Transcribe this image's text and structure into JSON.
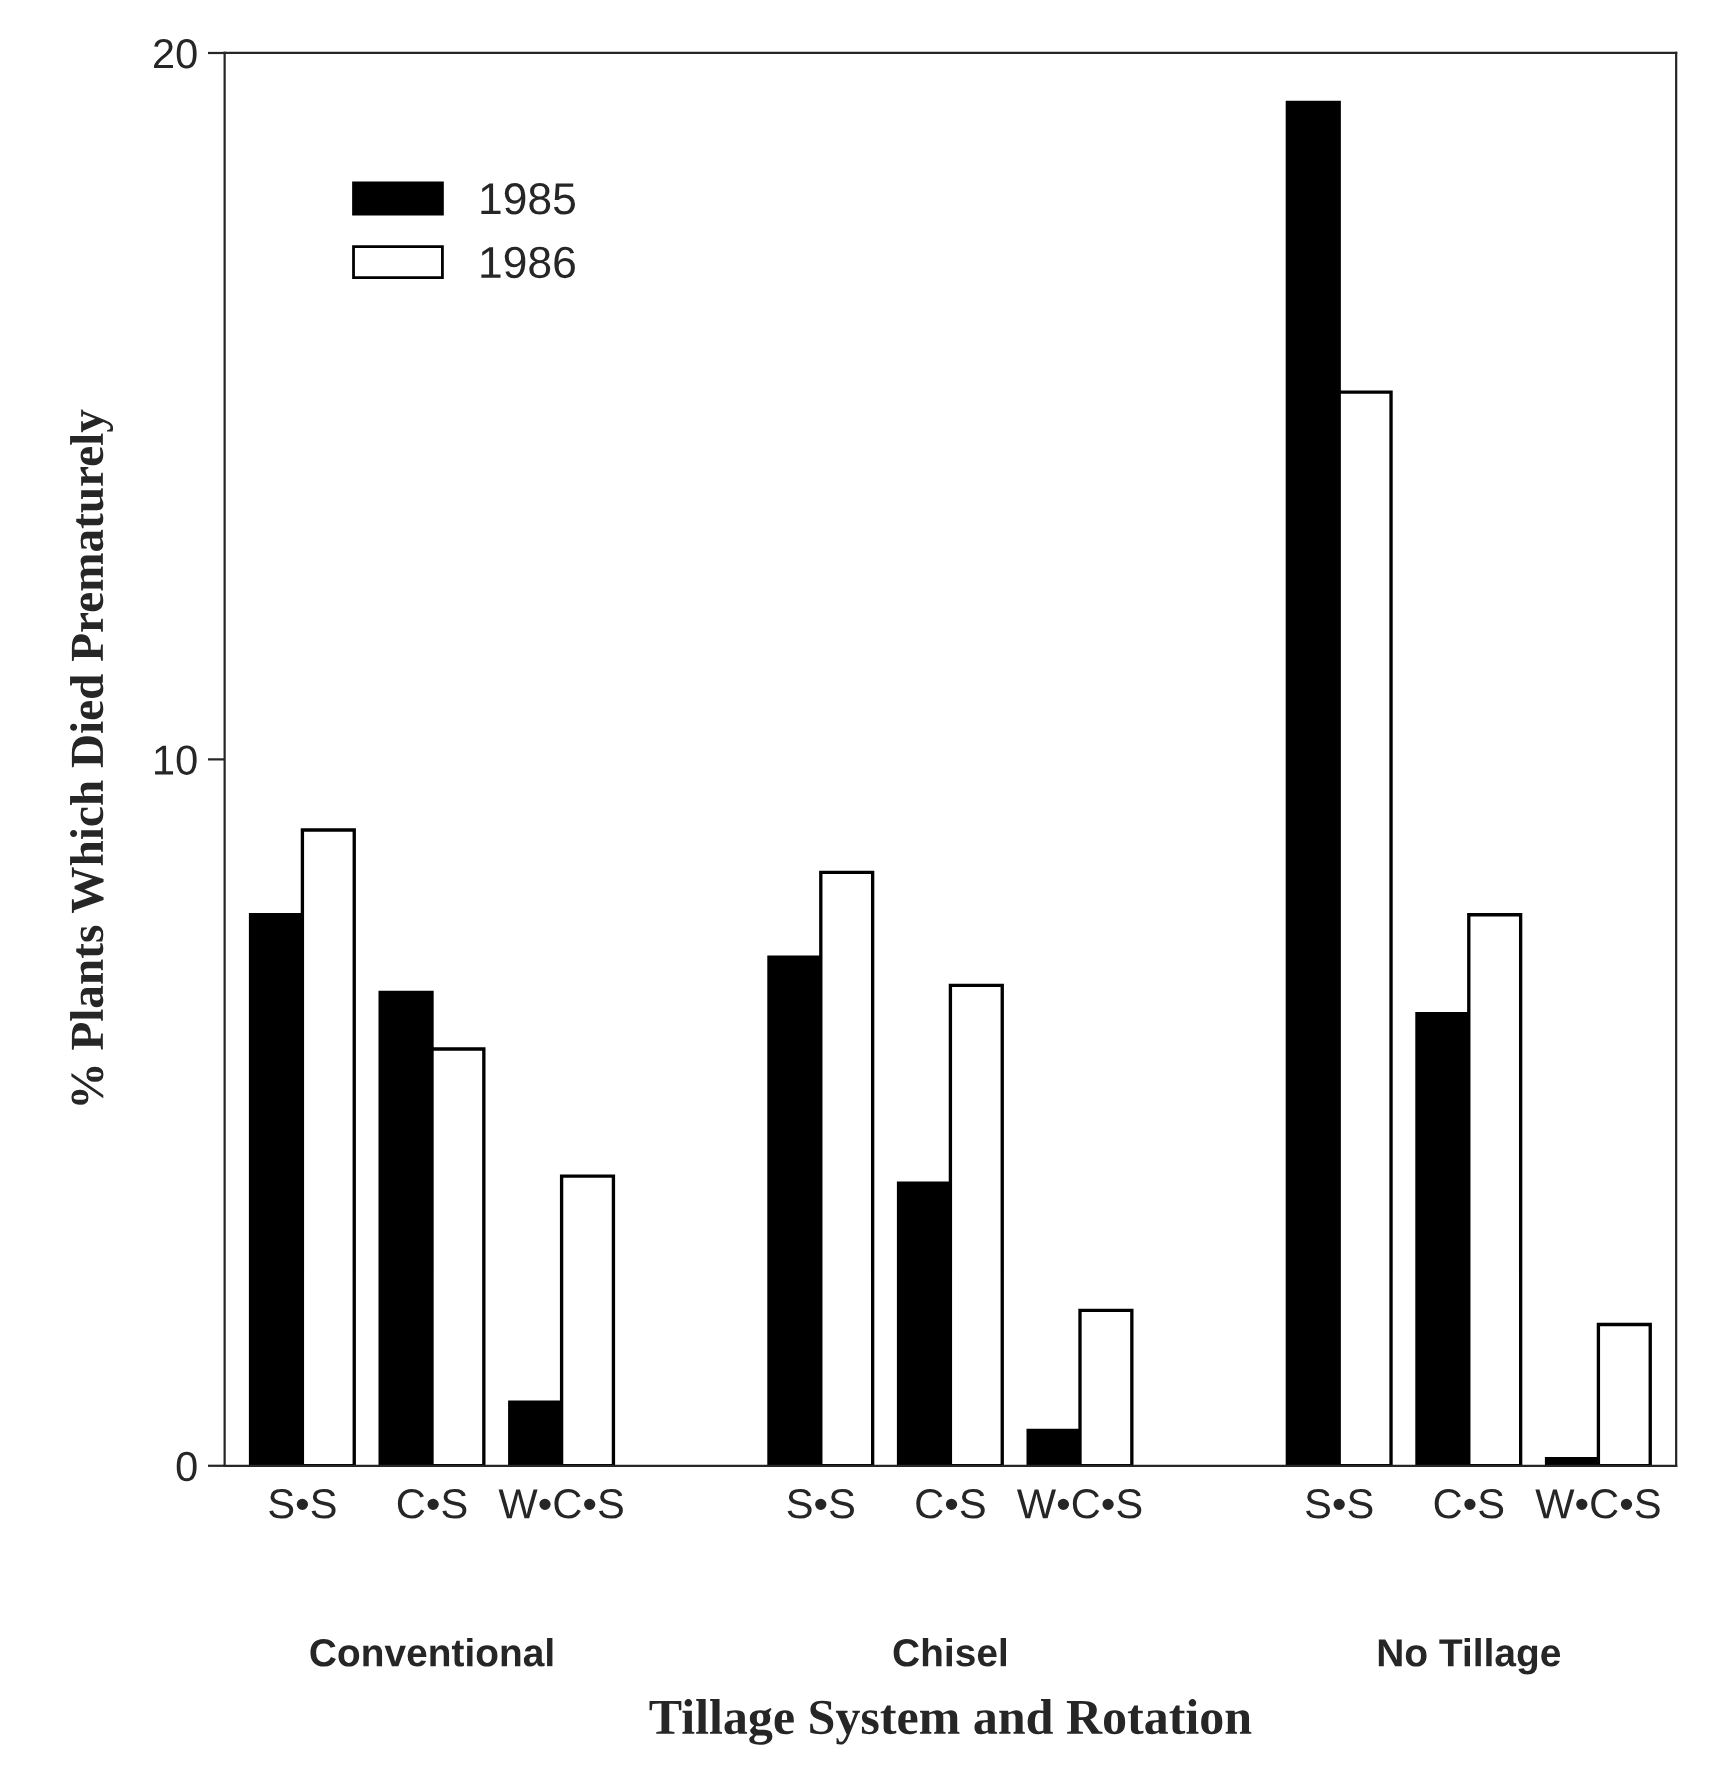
{
  "chart_data": {
    "type": "bar",
    "xlabel": "Tillage System and Rotation",
    "ylabel": "% Plants Which Died Prematurely",
    "categories": [
      "S•S",
      "C•S",
      "W•C•S",
      null,
      "S•S",
      "C•S",
      "W•C•S",
      null,
      "S•S",
      "C•S",
      "W•C•S"
    ],
    "series": [
      {
        "name": "1985",
        "color": "#000000",
        "values": [
          7.8,
          6.7,
          0.9,
          null,
          7.2,
          4.0,
          0.5,
          null,
          19.3,
          6.4,
          0.1
        ]
      },
      {
        "name": "1986",
        "color": "#ffffff",
        "values": [
          9.0,
          5.9,
          4.1,
          null,
          8.4,
          6.8,
          2.2,
          null,
          15.2,
          7.8,
          2.0
        ]
      }
    ],
    "annotations": [
      "Conventional",
      "Chisel",
      "No Tillage"
    ],
    "ylim": [
      0,
      20
    ],
    "yticks": [
      0,
      10,
      20
    ],
    "grid": false,
    "legend": "top left"
  }
}
